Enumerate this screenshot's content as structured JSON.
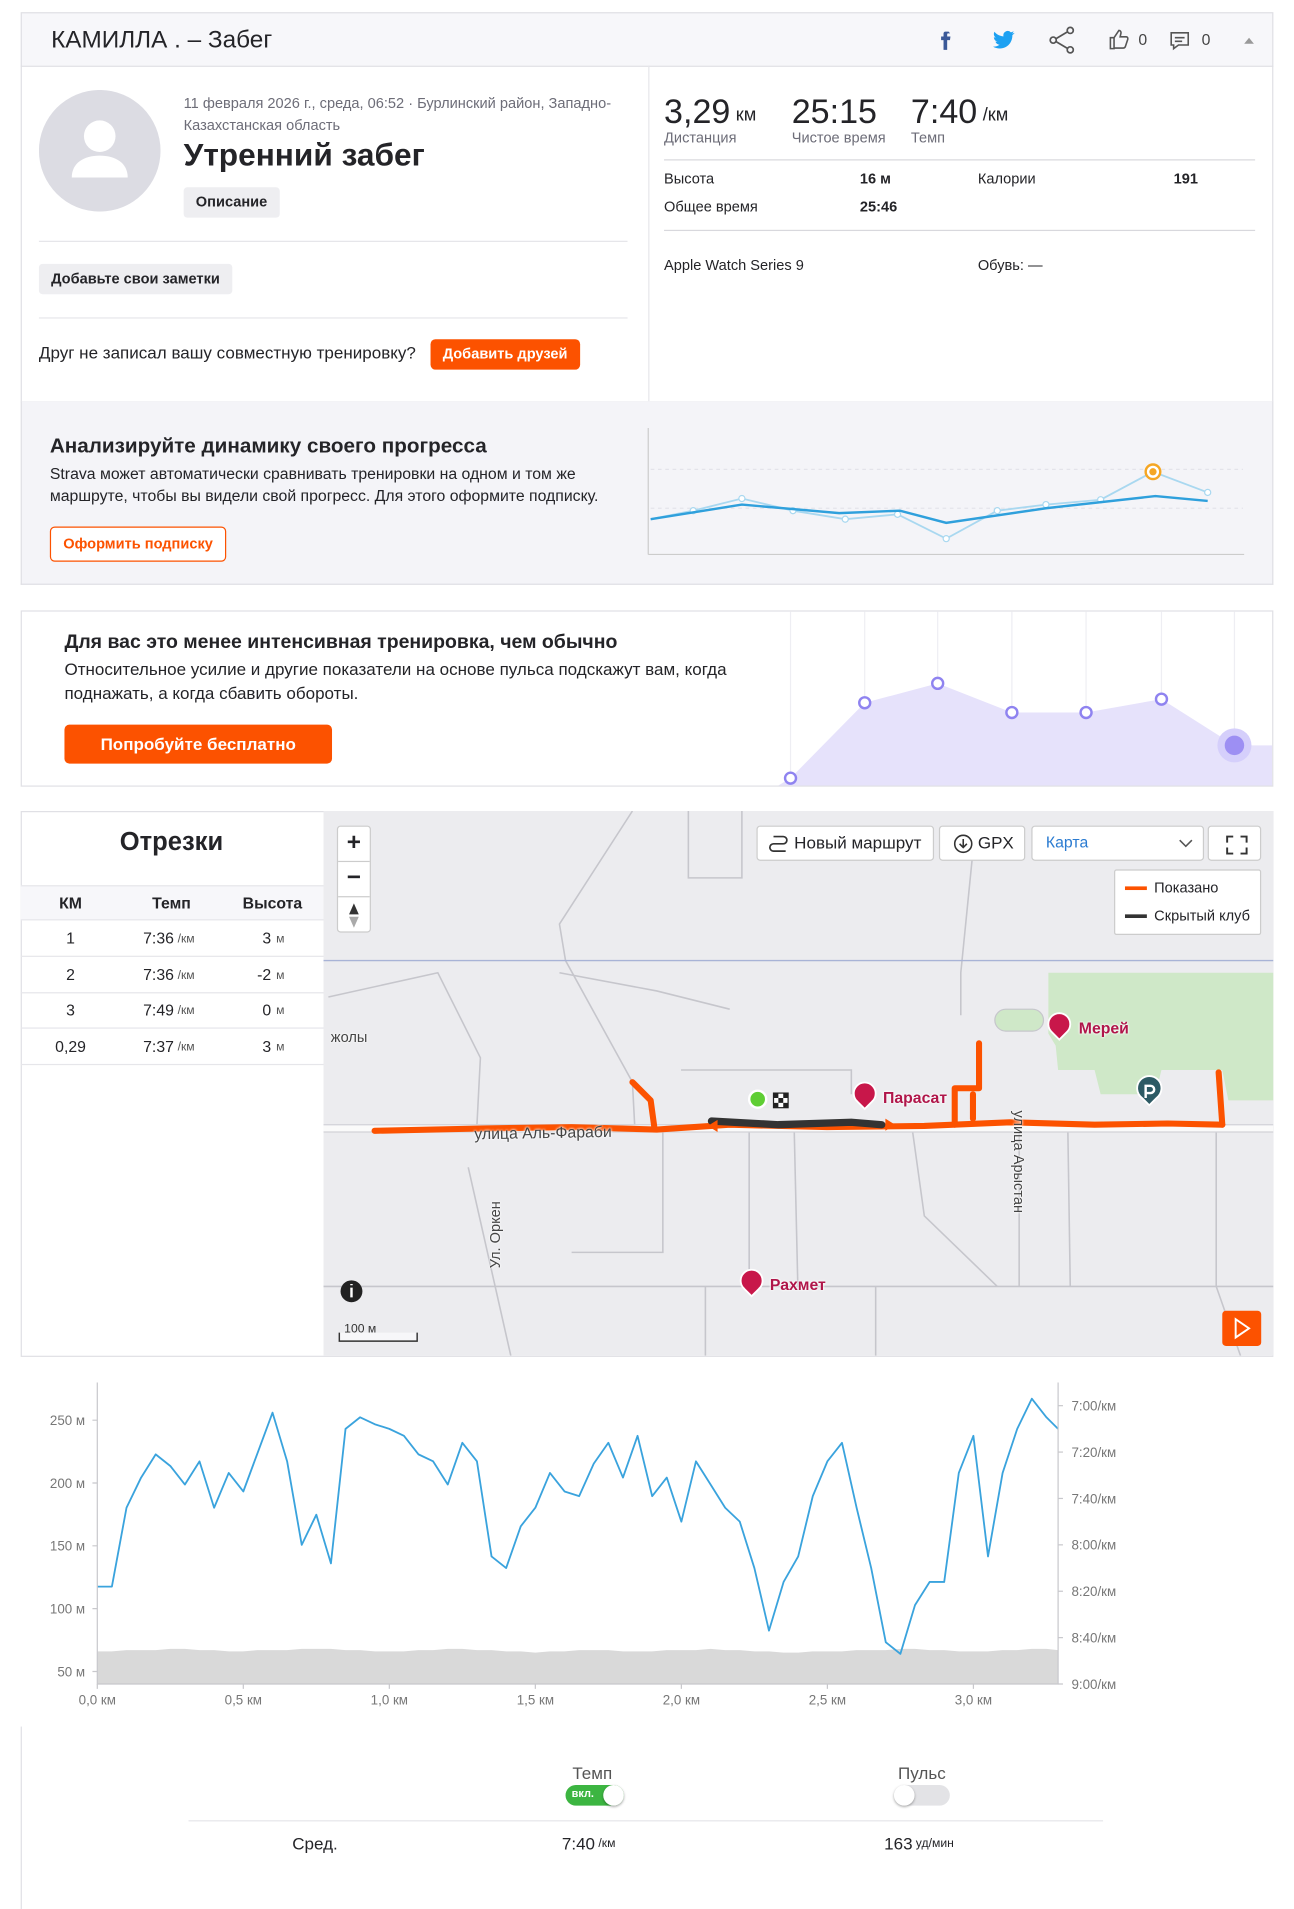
{
  "header": {
    "title": "КАМИЛЛА . – Забег",
    "kudos": "0",
    "comments": "0"
  },
  "activity": {
    "meta": "11 февраля 2026 г., среда, 06:52 · Бурлинский район, Западно-Казахстанская область",
    "name": "Утренний забег",
    "description_button": "Описание",
    "notes_button": "Добавьте свои заметки",
    "friends_prompt": "Друг не записал вашу совместную тренировку?",
    "friends_button": "Добавить друзей"
  },
  "stats": {
    "primary": [
      {
        "value": "3,29",
        "unit": "км",
        "label": "Дистанция"
      },
      {
        "value": "25:15",
        "label": "Чистое время"
      },
      {
        "value": "7:40",
        "unit": "/км",
        "label": "Темп"
      }
    ],
    "details": [
      {
        "label": "Высота",
        "value": "16 м"
      },
      {
        "label": "Калории",
        "value": "191"
      },
      {
        "label": "Общее время",
        "value": "25:46"
      }
    ],
    "device": "Apple Watch Series 9",
    "shoes": "Обувь: —"
  },
  "analyze": {
    "title": "Анализируйте динамику своего прогресса",
    "text": "Strava может автоматически сравнивать тренировки на одном и том же маршруте, чтобы вы видели свой прогресс. Для этого оформите подписку.",
    "button": "Оформить подписку"
  },
  "intensity": {
    "title": "Для вас это менее интенсивная тренировка, чем обычно",
    "text": "Относительное усилие и другие показатели на основе пульса подскажут вам, когда поднажать, а когда сбавить обороты.",
    "button": "Попробуйте бесплатно"
  },
  "segments": {
    "title": "Отрезки",
    "columns": [
      "КМ",
      "Темп",
      "Высота"
    ],
    "rows": [
      {
        "km": "1",
        "pace": "7:36",
        "pace_unit": "/км",
        "elev": "3",
        "elev_unit": "м"
      },
      {
        "km": "2",
        "pace": "7:36",
        "pace_unit": "/км",
        "elev": "-2",
        "elev_unit": "м"
      },
      {
        "km": "3",
        "pace": "7:49",
        "pace_unit": "/км",
        "elev": "0",
        "elev_unit": "м"
      },
      {
        "km": "0,29",
        "pace": "7:37",
        "pace_unit": "/км",
        "elev": "3",
        "elev_unit": "м"
      }
    ]
  },
  "map": {
    "zoom_in": "+",
    "zoom_out": "−",
    "new_route": "Новый маршрут",
    "gpx": "GPX",
    "layer": "Карта",
    "legend": [
      "Показано",
      "Скрытый клуб"
    ],
    "streets": [
      "улица Аль-Фараби",
      "Ул. Оркен",
      "улица Арыстан",
      "жолы"
    ],
    "places": [
      "Парасат",
      "Мерей",
      "Рахмет"
    ],
    "scale": "100 м"
  },
  "chart_data": {
    "type": "line",
    "x": [
      0,
      0.05,
      0.1,
      0.15,
      0.2,
      0.25,
      0.3,
      0.35,
      0.4,
      0.45,
      0.5,
      0.55,
      0.6,
      0.65,
      0.7,
      0.75,
      0.8,
      0.85,
      0.9,
      0.95,
      1.0,
      1.05,
      1.1,
      1.15,
      1.2,
      1.25,
      1.3,
      1.35,
      1.4,
      1.45,
      1.5,
      1.55,
      1.6,
      1.65,
      1.7,
      1.75,
      1.8,
      1.85,
      1.9,
      1.95,
      2.0,
      2.05,
      2.1,
      2.15,
      2.2,
      2.25,
      2.3,
      2.35,
      2.4,
      2.45,
      2.5,
      2.55,
      2.6,
      2.65,
      2.7,
      2.75,
      2.8,
      2.85,
      2.9,
      2.95,
      3.0,
      3.05,
      3.1,
      3.15,
      3.2,
      3.25,
      3.29
    ],
    "series": [
      {
        "axis": "y2",
        "color": "#3aa3dd",
        "values": [
          498,
          498,
          464,
          451,
          441,
          446,
          454,
          444,
          464,
          449,
          457,
          440,
          423,
          444,
          480,
          467,
          488,
          430,
          425,
          428,
          430,
          433,
          441,
          444,
          454,
          436,
          444,
          485,
          490,
          472,
          464,
          449,
          457,
          459,
          445,
          436,
          451,
          433,
          459,
          451,
          470,
          444,
          454,
          464,
          470,
          490,
          517,
          496,
          485,
          459,
          444,
          436,
          464,
          490,
          522,
          527,
          506,
          496,
          496,
          449,
          433,
          485,
          449,
          430,
          417,
          425,
          430
        ]
      },
      {
        "type": "area",
        "color": "#d9d9d9",
        "values": [
          66,
          66,
          67,
          67,
          67,
          68,
          68,
          67,
          67,
          66,
          66,
          67,
          67,
          67,
          68,
          68,
          68,
          67,
          67,
          66,
          66,
          66,
          67,
          67,
          68,
          68,
          67,
          67,
          66,
          66,
          65,
          66,
          66,
          67,
          67,
          67,
          66,
          66,
          66,
          67,
          67,
          67,
          68,
          67,
          67,
          66,
          66,
          65,
          65,
          66,
          66,
          66,
          67,
          67,
          67,
          68,
          68,
          67,
          67,
          66,
          66,
          66,
          67,
          67,
          68,
          68,
          67
        ]
      }
    ],
    "xlim": [
      0,
      3.29
    ],
    "xticks": [
      {
        "value": 0,
        "label": "0,0 км"
      },
      {
        "value": 0.5,
        "label": "0,5 км"
      },
      {
        "value": 1,
        "label": "1,0 км"
      },
      {
        "value": 1.5,
        "label": "1,5 км"
      },
      {
        "value": 2,
        "label": "2,0 км"
      },
      {
        "value": 2.5,
        "label": "2,5 км"
      },
      {
        "value": 3,
        "label": "3,0 км"
      }
    ],
    "ylim": [
      40,
      280
    ],
    "yticks": [
      {
        "value": 50,
        "label": "50 м"
      },
      {
        "value": 100,
        "label": "100 м"
      },
      {
        "value": 150,
        "label": "150 м"
      },
      {
        "value": 200,
        "label": "200 м"
      },
      {
        "value": 250,
        "label": "250 м"
      }
    ],
    "y2lim": [
      410,
      540
    ],
    "y2_inverted": true,
    "y2ticks": [
      {
        "value": 420,
        "label": "7:00/км"
      },
      {
        "value": 440,
        "label": "7:20/км"
      },
      {
        "value": 460,
        "label": "7:40/км"
      },
      {
        "value": 480,
        "label": "8:00/км"
      },
      {
        "value": 500,
        "label": "8:20/км"
      },
      {
        "value": 520,
        "label": "8:40/км"
      },
      {
        "value": 540,
        "label": "9:00/км"
      }
    ]
  },
  "summary": {
    "tabs": [
      {
        "name": "Темп",
        "toggle": "вкл."
      },
      {
        "name": "Пульс"
      }
    ],
    "avg_label": "Сред.",
    "pace": "7:40",
    "pace_unit": "/км",
    "hr": "163",
    "hr_unit": "уд/мин"
  }
}
